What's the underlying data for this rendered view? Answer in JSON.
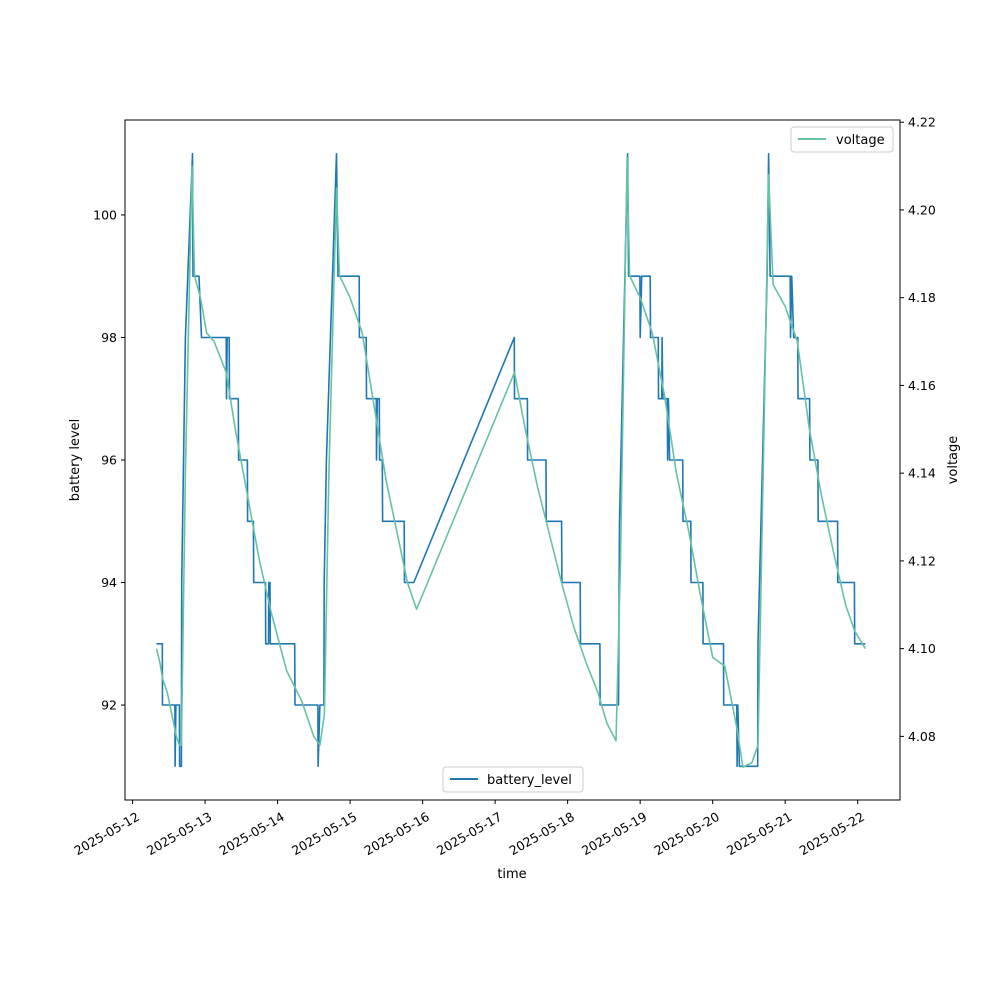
{
  "chart_data": {
    "type": "line",
    "xlabel": "time",
    "ylabel_left": "battery level",
    "ylabel_right": "voltage",
    "x_ticks": [
      "2025-05-12",
      "2025-05-13",
      "2025-05-14",
      "2025-05-15",
      "2025-05-16",
      "2025-05-17",
      "2025-05-18",
      "2025-05-19",
      "2025-05-20",
      "2025-05-21",
      "2025-05-22"
    ],
    "y_left_ticks": [
      92,
      94,
      96,
      98,
      100
    ],
    "y_right_ticks": [
      4.08,
      4.1,
      4.12,
      4.14,
      4.16,
      4.18,
      4.2,
      4.22
    ],
    "xlim": [
      "2025-05-11T21:30",
      "2025-05-22T14:00"
    ],
    "ylim_left": [
      90.45,
      101.55
    ],
    "ylim_right": [
      4.0655,
      4.2205
    ],
    "grid": false,
    "series": [
      {
        "name": "battery_level",
        "axis": "left",
        "color": "#1f77b4",
        "legend_position": "lower center",
        "points": [
          [
            "2025-05-12T07:55",
            93
          ],
          [
            "2025-05-12T09:50",
            93
          ],
          [
            "2025-05-12T09:55",
            92
          ],
          [
            "2025-05-12T14:00",
            92
          ],
          [
            "2025-05-12T14:05",
            91
          ],
          [
            "2025-05-12T14:20",
            92
          ],
          [
            "2025-05-12T15:30",
            92
          ],
          [
            "2025-05-12T15:35",
            91
          ],
          [
            "2025-05-12T16:10",
            91
          ],
          [
            "2025-05-12T16:15",
            94
          ],
          [
            "2025-05-12T17:30",
            98
          ],
          [
            "2025-05-12T19:50",
            101
          ],
          [
            "2025-05-12T20:00",
            99
          ],
          [
            "2025-05-12T22:00",
            99
          ],
          [
            "2025-05-12T22:50",
            98
          ],
          [
            "2025-05-13T07:00",
            98
          ],
          [
            "2025-05-13T07:05",
            97
          ],
          [
            "2025-05-13T07:20",
            98
          ],
          [
            "2025-05-13T08:00",
            98
          ],
          [
            "2025-05-13T08:05",
            97
          ],
          [
            "2025-05-13T11:00",
            97
          ],
          [
            "2025-05-13T11:05",
            96
          ],
          [
            "2025-05-13T14:00",
            96
          ],
          [
            "2025-05-13T14:05",
            95
          ],
          [
            "2025-05-13T16:00",
            95
          ],
          [
            "2025-05-13T16:05",
            94
          ],
          [
            "2025-05-13T20:00",
            94
          ],
          [
            "2025-05-13T20:05",
            93
          ],
          [
            "2025-05-13T21:00",
            93
          ],
          [
            "2025-05-13T21:05",
            94
          ],
          [
            "2025-05-13T21:30",
            94
          ],
          [
            "2025-05-13T21:35",
            93
          ],
          [
            "2025-05-14T05:40",
            93
          ],
          [
            "2025-05-14T05:45",
            92
          ],
          [
            "2025-05-14T13:20",
            92
          ],
          [
            "2025-05-14T13:25",
            91
          ],
          [
            "2025-05-14T14:00",
            92
          ],
          [
            "2025-05-14T15:20",
            92
          ],
          [
            "2025-05-14T15:25",
            94
          ],
          [
            "2025-05-14T16:10",
            96
          ],
          [
            "2025-05-14T19:30",
            101
          ],
          [
            "2025-05-14T20:00",
            99
          ],
          [
            "2025-05-15T03:00",
            99
          ],
          [
            "2025-05-15T03:05",
            98
          ],
          [
            "2025-05-15T05:20",
            98
          ],
          [
            "2025-05-15T05:25",
            97
          ],
          [
            "2025-05-15T08:40",
            97
          ],
          [
            "2025-05-15T08:45",
            96
          ],
          [
            "2025-05-15T09:00",
            97
          ],
          [
            "2025-05-15T09:40",
            97
          ],
          [
            "2025-05-15T09:45",
            96
          ],
          [
            "2025-05-15T10:40",
            96
          ],
          [
            "2025-05-15T10:45",
            95
          ],
          [
            "2025-05-15T17:55",
            95
          ],
          [
            "2025-05-15T18:00",
            94
          ],
          [
            "2025-05-15T21:05",
            94
          ],
          [
            "2025-05-17T06:20",
            98
          ],
          [
            "2025-05-17T06:25",
            97
          ],
          [
            "2025-05-17T10:40",
            97
          ],
          [
            "2025-05-17T10:45",
            96
          ],
          [
            "2025-05-17T16:50",
            96
          ],
          [
            "2025-05-17T16:55",
            95
          ],
          [
            "2025-05-17T22:00",
            95
          ],
          [
            "2025-05-17T22:05",
            94
          ],
          [
            "2025-05-18T04:10",
            94
          ],
          [
            "2025-05-18T04:15",
            93
          ],
          [
            "2025-05-18T10:40",
            93
          ],
          [
            "2025-05-18T10:45",
            92
          ],
          [
            "2025-05-18T16:50",
            92
          ],
          [
            "2025-05-18T17:10",
            95
          ],
          [
            "2025-05-18T19:50",
            101
          ],
          [
            "2025-05-18T20:10",
            99
          ],
          [
            "2025-05-18T23:55",
            99
          ],
          [
            "2025-05-19T00:00",
            98
          ],
          [
            "2025-05-19T00:30",
            99
          ],
          [
            "2025-05-19T03:20",
            99
          ],
          [
            "2025-05-19T03:25",
            98
          ],
          [
            "2025-05-19T06:00",
            98
          ],
          [
            "2025-05-19T06:05",
            97
          ],
          [
            "2025-05-19T07:10",
            97
          ],
          [
            "2025-05-19T07:15",
            98
          ],
          [
            "2025-05-19T07:30",
            97
          ],
          [
            "2025-05-19T09:00",
            97
          ],
          [
            "2025-05-19T09:05",
            96
          ],
          [
            "2025-05-19T09:20",
            97
          ],
          [
            "2025-05-19T09:45",
            96
          ],
          [
            "2025-05-19T14:05",
            96
          ],
          [
            "2025-05-19T14:10",
            95
          ],
          [
            "2025-05-19T16:45",
            95
          ],
          [
            "2025-05-19T16:50",
            94
          ],
          [
            "2025-05-19T20:45",
            94
          ],
          [
            "2025-05-19T20:50",
            93
          ],
          [
            "2025-05-20T03:35",
            93
          ],
          [
            "2025-05-20T03:40",
            92
          ],
          [
            "2025-05-20T08:00",
            92
          ],
          [
            "2025-05-20T08:05",
            91
          ],
          [
            "2025-05-20T08:20",
            92
          ],
          [
            "2025-05-20T08:50",
            91
          ],
          [
            "2025-05-20T14:55",
            91
          ],
          [
            "2025-05-20T15:00",
            93
          ],
          [
            "2025-05-20T18:00",
            99
          ],
          [
            "2025-05-20T18:30",
            101
          ],
          [
            "2025-05-20T19:00",
            99
          ],
          [
            "2025-05-21T01:40",
            99
          ],
          [
            "2025-05-21T01:45",
            98
          ],
          [
            "2025-05-21T02:10",
            99
          ],
          [
            "2025-05-21T02:50",
            98
          ],
          [
            "2025-05-21T04:10",
            98
          ],
          [
            "2025-05-21T04:15",
            97
          ],
          [
            "2025-05-21T08:05",
            97
          ],
          [
            "2025-05-21T08:10",
            96
          ],
          [
            "2025-05-21T10:50",
            96
          ],
          [
            "2025-05-21T10:55",
            95
          ],
          [
            "2025-05-21T17:20",
            95
          ],
          [
            "2025-05-21T17:25",
            94
          ],
          [
            "2025-05-21T22:55",
            94
          ],
          [
            "2025-05-21T23:00",
            93
          ],
          [
            "2025-05-22T02:30",
            93
          ]
        ]
      },
      {
        "name": "voltage",
        "axis": "right",
        "color": "#66c2a5",
        "legend_position": "upper right",
        "points": [
          [
            "2025-05-12T07:55",
            4.1
          ],
          [
            "2025-05-12T09:00",
            4.097
          ],
          [
            "2025-05-12T10:00",
            4.093
          ],
          [
            "2025-05-12T11:30",
            4.09
          ],
          [
            "2025-05-12T13:00",
            4.085
          ],
          [
            "2025-05-12T14:30",
            4.08
          ],
          [
            "2025-05-12T15:30",
            4.078
          ],
          [
            "2025-05-12T16:10",
            4.078
          ],
          [
            "2025-05-12T17:30",
            4.14
          ],
          [
            "2025-05-12T19:40",
            4.21
          ],
          [
            "2025-05-12T20:30",
            4.185
          ],
          [
            "2025-05-12T22:30",
            4.18
          ],
          [
            "2025-05-13T00:30",
            4.172
          ],
          [
            "2025-05-13T03:00",
            4.17
          ],
          [
            "2025-05-13T07:00",
            4.163
          ],
          [
            "2025-05-13T10:00",
            4.15
          ],
          [
            "2025-05-13T14:00",
            4.135
          ],
          [
            "2025-05-13T18:00",
            4.12
          ],
          [
            "2025-05-13T22:00",
            4.108
          ],
          [
            "2025-05-14T03:00",
            4.095
          ],
          [
            "2025-05-14T08:00",
            4.088
          ],
          [
            "2025-05-14T12:00",
            4.08
          ],
          [
            "2025-05-14T14:00",
            4.078
          ],
          [
            "2025-05-14T15:30",
            4.085
          ],
          [
            "2025-05-14T17:00",
            4.14
          ],
          [
            "2025-05-14T19:30",
            4.205
          ],
          [
            "2025-05-14T20:30",
            4.185
          ],
          [
            "2025-05-15T00:00",
            4.18
          ],
          [
            "2025-05-15T04:00",
            4.172
          ],
          [
            "2025-05-15T08:00",
            4.155
          ],
          [
            "2025-05-15T12:00",
            4.138
          ],
          [
            "2025-05-15T16:00",
            4.125
          ],
          [
            "2025-05-15T19:00",
            4.115
          ],
          [
            "2025-05-15T22:00",
            4.109
          ],
          [
            "2025-05-17T06:25",
            4.163
          ],
          [
            "2025-05-17T10:00",
            4.15
          ],
          [
            "2025-05-17T14:00",
            4.137
          ],
          [
            "2025-05-17T18:00",
            4.126
          ],
          [
            "2025-05-17T22:00",
            4.115
          ],
          [
            "2025-05-18T02:00",
            4.105
          ],
          [
            "2025-05-18T06:00",
            4.097
          ],
          [
            "2025-05-18T10:00",
            4.09
          ],
          [
            "2025-05-18T13:00",
            4.083
          ],
          [
            "2025-05-18T16:00",
            4.079
          ],
          [
            "2025-05-18T17:30",
            4.12
          ],
          [
            "2025-05-18T19:40",
            4.212
          ],
          [
            "2025-05-18T20:30",
            4.185
          ],
          [
            "2025-05-19T00:00",
            4.18
          ],
          [
            "2025-05-19T04:00",
            4.172
          ],
          [
            "2025-05-19T08:00",
            4.158
          ],
          [
            "2025-05-19T12:00",
            4.14
          ],
          [
            "2025-05-19T16:00",
            4.127
          ],
          [
            "2025-05-19T20:00",
            4.112
          ],
          [
            "2025-05-20T00:00",
            4.098
          ],
          [
            "2025-05-20T04:00",
            4.096
          ],
          [
            "2025-05-20T08:00",
            4.082
          ],
          [
            "2025-05-20T10:00",
            4.073
          ],
          [
            "2025-05-20T13:00",
            4.074
          ],
          [
            "2025-05-20T15:00",
            4.078
          ],
          [
            "2025-05-20T17:00",
            4.15
          ],
          [
            "2025-05-20T18:30",
            4.208
          ],
          [
            "2025-05-20T20:00",
            4.183
          ],
          [
            "2025-05-21T00:00",
            4.178
          ],
          [
            "2025-05-21T04:00",
            4.17
          ],
          [
            "2025-05-21T08:00",
            4.15
          ],
          [
            "2025-05-21T12:00",
            4.135
          ],
          [
            "2025-05-21T16:00",
            4.122
          ],
          [
            "2025-05-21T20:00",
            4.11
          ],
          [
            "2025-05-21T23:00",
            4.104
          ],
          [
            "2025-05-22T02:30",
            4.1
          ]
        ]
      }
    ]
  },
  "legend": {
    "battery_label": "battery_level",
    "voltage_label": "voltage"
  }
}
